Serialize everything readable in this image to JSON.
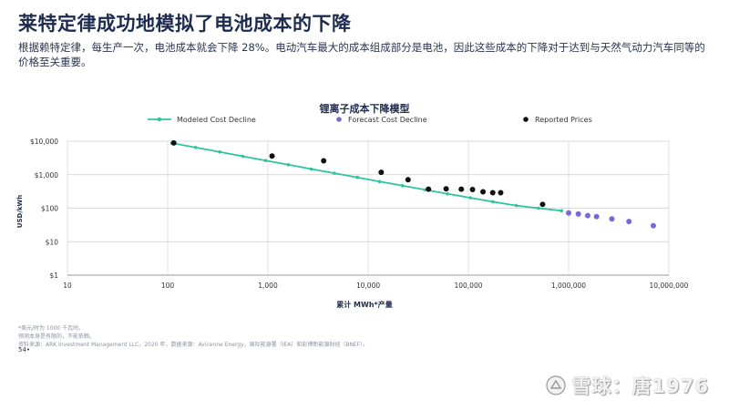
{
  "page": {
    "title": "莱特定律成功地模拟了电池成本的下降",
    "subtitle": "根据赖特定律，每生产一次，电池成本就会下降 28%。电动汽车最大的成本组成部分是电池，因此这些成本的下降对于达到与天然气动力汽车同等的价格至关重要。",
    "footnotes": [
      "*美元/时为 1000 千瓦时。",
      "预测本身是有限的，不能依赖。",
      "资料来源：ARK Investment Management LLC，2020 年，数据来源：Avicenne Energy，国际能源署（IEA）和彭博新能源财经（BNEF）。"
    ],
    "page_number": "54•",
    "watermark": "雪球：唐1976"
  },
  "chart_data": {
    "type": "scatter",
    "title": "锂离子成本下降模型",
    "xlabel": "累计 MWh*产量",
    "ylabel": "USD/kWh",
    "x_scale": "log",
    "y_scale": "log",
    "xlim": [
      10,
      10000000
    ],
    "ylim": [
      1,
      10000
    ],
    "x_ticks": [
      {
        "value": 10,
        "label": "10"
      },
      {
        "value": 100,
        "label": "100"
      },
      {
        "value": 1000,
        "label": "1,000"
      },
      {
        "value": 10000,
        "label": "10,000"
      },
      {
        "value": 100000,
        "label": "100,000"
      },
      {
        "value": 1000000,
        "label": "1,000,000"
      },
      {
        "value": 10000000,
        "label": "10,000,000"
      }
    ],
    "y_ticks": [
      {
        "value": 1,
        "label": "$1"
      },
      {
        "value": 10,
        "label": "$10"
      },
      {
        "value": 100,
        "label": "$100"
      },
      {
        "value": 1000,
        "label": "$1,000"
      },
      {
        "value": 10000,
        "label": "$10,000"
      }
    ],
    "grid": true,
    "legend_position": "top",
    "series": [
      {
        "name": "Modeled Cost Decline",
        "kind": "line-markers",
        "color": "#2ec4a0",
        "x": [
          110,
          190,
          330,
          560,
          950,
          1600,
          2700,
          4600,
          7800,
          13000,
          22000,
          37000,
          62000,
          105000,
          175000,
          300000,
          500000,
          850000
        ],
        "y": [
          8800,
          6500,
          4800,
          3550,
          2650,
          1980,
          1480,
          1110,
          830,
          625,
          470,
          355,
          268,
          204,
          156,
          120,
          100,
          84
        ]
      },
      {
        "name": "Forecast Cost Decline",
        "kind": "markers",
        "color": "#7b68d8",
        "x": [
          1000000,
          1250000,
          1550000,
          1900000,
          2700000,
          4000000,
          7000000
        ],
        "y": [
          72,
          67,
          60,
          56,
          48,
          40,
          30
        ]
      },
      {
        "name": "Reported Prices",
        "kind": "markers",
        "color": "#111111",
        "x": [
          115,
          1100,
          3600,
          13500,
          25000,
          40000,
          60000,
          85000,
          110000,
          140000,
          175000,
          210000,
          550000
        ],
        "y": [
          8900,
          3600,
          2600,
          1180,
          710,
          370,
          380,
          370,
          360,
          310,
          290,
          290,
          130
        ]
      }
    ]
  }
}
